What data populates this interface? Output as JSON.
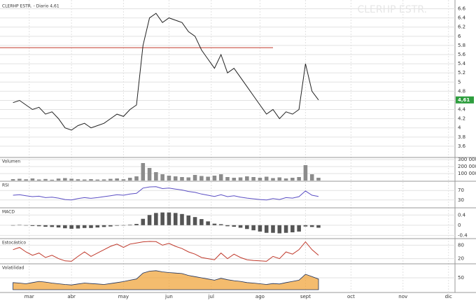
{
  "chart_data": [
    {
      "type": "line",
      "title": "CLERHP ESTR. - Diario 4,61",
      "watermark": "CLERHP ESTR.",
      "color": "#222222",
      "values": [
        4.55,
        4.6,
        4.5,
        4.4,
        4.45,
        4.3,
        4.35,
        4.2,
        4.0,
        3.95,
        4.05,
        4.1,
        4.0,
        4.05,
        4.1,
        4.2,
        4.3,
        4.25,
        4.4,
        4.5,
        5.8,
        6.4,
        6.5,
        6.3,
        6.4,
        6.35,
        6.3,
        6.1,
        6.0,
        5.7,
        5.5,
        5.3,
        5.6,
        5.2,
        5.3,
        5.1,
        4.9,
        4.7,
        4.5,
        4.3,
        4.4,
        4.2,
        4.35,
        4.3,
        4.4,
        5.4,
        4.8,
        4.61
      ],
      "last_label": "4,61",
      "last_color": "#2e9e3e",
      "levels": [
        {
          "value": 5.75,
          "color": "#c0392b"
        }
      ],
      "xlim": [
        -2,
        68
      ],
      "xticks": [
        {
          "value": 2.5,
          "label": "mar"
        },
        {
          "value": 9,
          "label": "abr"
        },
        {
          "value": 17,
          "label": "may"
        },
        {
          "value": 24,
          "label": "jun"
        },
        {
          "value": 30.5,
          "label": "jul"
        },
        {
          "value": 38,
          "label": "ago"
        },
        {
          "value": 45,
          "label": "sept"
        },
        {
          "value": 52,
          "label": "oct"
        },
        {
          "value": 60,
          "label": "nov"
        },
        {
          "value": 67,
          "label": "dic"
        }
      ],
      "ylim": [
        3.4,
        6.7
      ],
      "yticks": [
        3.6,
        3.8,
        4,
        4.2,
        4.4,
        4.6,
        4.8,
        5,
        5.2,
        5.4,
        5.6,
        5.8,
        6,
        6.2,
        6.4,
        6.6
      ],
      "grid": true
    },
    {
      "type": "bar",
      "title": "Volumen",
      "color": "#8c8c8c",
      "values": [
        20000,
        25000,
        18000,
        30000,
        15000,
        22000,
        12000,
        28000,
        35000,
        26000,
        18000,
        15000,
        20000,
        14000,
        16000,
        24000,
        30000,
        18000,
        40000,
        60000,
        250000,
        180000,
        120000,
        90000,
        70000,
        60000,
        50000,
        45000,
        80000,
        65000,
        55000,
        70000,
        90000,
        50000,
        40000,
        45000,
        60000,
        50000,
        40000,
        55000,
        35000,
        45000,
        30000,
        40000,
        50000,
        220000,
        90000,
        40000
      ],
      "ylim": [
        0,
        300000
      ],
      "yticks": [
        {
          "value": 100000,
          "label": "100 000"
        },
        {
          "value": 200000,
          "label": "200 000"
        },
        {
          "value": 300000,
          "label": "300 000"
        }
      ],
      "grid": true
    },
    {
      "type": "line",
      "title": "RSI",
      "color": "#5b4fc4",
      "values": [
        50,
        52,
        48,
        44,
        46,
        40,
        42,
        38,
        32,
        30,
        36,
        40,
        37,
        40,
        44,
        48,
        52,
        50,
        55,
        58,
        80,
        85,
        86,
        78,
        80,
        76,
        72,
        66,
        62,
        55,
        50,
        45,
        52,
        44,
        48,
        42,
        38,
        35,
        32,
        30,
        36,
        32,
        40,
        38,
        44,
        68,
        50,
        45
      ],
      "ylim": [
        0,
        100
      ],
      "yticks": [
        30,
        70
      ],
      "grid": true
    },
    {
      "type": "bar",
      "title": "MACD",
      "color": "#555555",
      "values": [
        0,
        0.01,
        -0.01,
        -0.03,
        -0.04,
        -0.06,
        -0.07,
        -0.09,
        -0.12,
        -0.14,
        -0.13,
        -0.11,
        -0.11,
        -0.09,
        -0.07,
        -0.05,
        -0.02,
        -0.01,
        0.02,
        0.05,
        0.25,
        0.4,
        0.48,
        0.5,
        0.5,
        0.48,
        0.44,
        0.38,
        0.32,
        0.24,
        0.15,
        0.06,
        0.04,
        -0.04,
        -0.06,
        -0.1,
        -0.15,
        -0.2,
        -0.25,
        -0.3,
        -0.3,
        -0.32,
        -0.3,
        -0.28,
        -0.25,
        -0.05,
        -0.07,
        -0.1
      ],
      "ylim": [
        -0.5,
        0.6
      ],
      "yticks": [
        -0.4,
        0,
        0.4
      ],
      "grid": true
    },
    {
      "type": "line",
      "title": "Estocástico",
      "color": "#c0392b",
      "values": [
        60,
        70,
        50,
        35,
        45,
        25,
        35,
        20,
        10,
        8,
        30,
        50,
        30,
        45,
        60,
        75,
        85,
        70,
        85,
        90,
        95,
        97,
        96,
        80,
        88,
        75,
        65,
        50,
        40,
        25,
        20,
        15,
        45,
        20,
        40,
        25,
        15,
        12,
        10,
        8,
        30,
        20,
        50,
        40,
        60,
        95,
        60,
        35
      ],
      "ylim": [
        0,
        100
      ],
      "yticks": [
        20,
        80
      ],
      "grid": true
    },
    {
      "type": "area",
      "title": "Volatilidad",
      "color": "#f0a030",
      "values": [
        30,
        28,
        25,
        30,
        35,
        32,
        28,
        25,
        22,
        20,
        24,
        28,
        26,
        24,
        22,
        26,
        30,
        34,
        40,
        45,
        70,
        78,
        80,
        75,
        72,
        70,
        68,
        60,
        55,
        50,
        45,
        40,
        48,
        42,
        38,
        35,
        30,
        28,
        25,
        22,
        26,
        24,
        30,
        35,
        40,
        65,
        55,
        45
      ],
      "ylim": [
        0,
        100
      ],
      "yticks": [
        50
      ],
      "grid": true
    }
  ]
}
